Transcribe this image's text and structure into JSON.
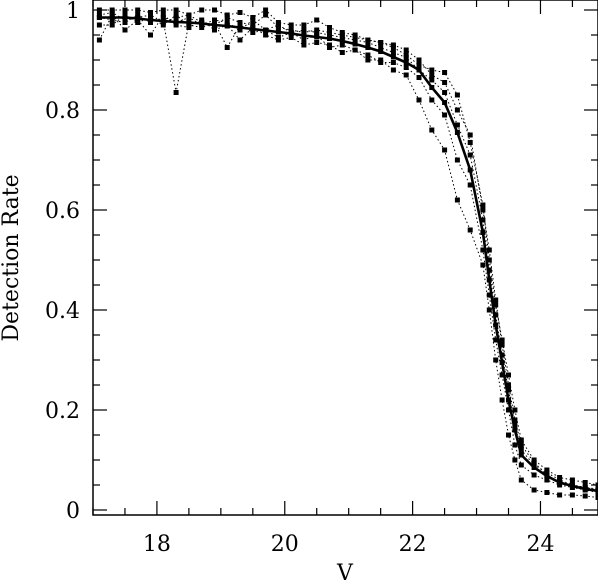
{
  "chart_data": {
    "type": "line",
    "title": "",
    "xlabel": "V",
    "ylabel": "Detection Rate",
    "xlim": [
      17.0,
      24.9
    ],
    "ylim": [
      0,
      1.0
    ],
    "xticks": [
      18,
      20,
      22,
      24
    ],
    "yticks": [
      0,
      0.2,
      0.4,
      0.6,
      0.8,
      1
    ],
    "grid": false,
    "legend": "none",
    "x": [
      17.1,
      17.3,
      17.5,
      17.7,
      17.9,
      18.1,
      18.3,
      18.5,
      18.7,
      18.9,
      19.1,
      19.3,
      19.5,
      19.7,
      19.9,
      20.1,
      20.3,
      20.5,
      20.7,
      20.9,
      21.1,
      21.3,
      21.5,
      21.7,
      21.9,
      22.1,
      22.3,
      22.5,
      22.7,
      22.9,
      23.1,
      23.2,
      23.3,
      23.4,
      23.5,
      23.6,
      23.7,
      23.9,
      24.1,
      24.3,
      24.5,
      24.7,
      24.9
    ],
    "series": [
      {
        "style": "solid-thick",
        "color": "#000000",
        "values": [
          0.985,
          0.985,
          0.985,
          0.983,
          0.98,
          0.978,
          0.976,
          0.975,
          0.973,
          0.97,
          0.968,
          0.965,
          0.962,
          0.959,
          0.956,
          0.953,
          0.949,
          0.946,
          0.943,
          0.938,
          0.932,
          0.925,
          0.917,
          0.906,
          0.895,
          0.88,
          0.845,
          0.815,
          0.755,
          0.68,
          0.555,
          0.46,
          0.37,
          0.295,
          0.22,
          0.16,
          0.11,
          0.085,
          0.068,
          0.055,
          0.048,
          0.042,
          0.038
        ]
      },
      {
        "style": "dotted",
        "color": "#000000",
        "values": [
          0.985,
          0.985,
          0.985,
          0.983,
          0.98,
          0.978,
          0.835,
          0.975,
          0.973,
          0.97,
          0.968,
          0.965,
          0.962,
          0.959,
          0.956,
          0.953,
          0.949,
          0.946,
          0.943,
          0.938,
          0.932,
          0.925,
          0.917,
          0.906,
          0.895,
          0.88,
          0.845,
          0.815,
          0.755,
          0.68,
          0.555,
          0.46,
          0.37,
          0.295,
          0.22,
          0.16,
          0.11,
          0.085,
          0.068,
          0.055,
          0.048,
          0.042,
          0.038
        ]
      },
      {
        "style": "dotted",
        "color": "#000000",
        "values": [
          1.0,
          1.0,
          1.0,
          1.0,
          0.995,
          1.0,
          1.0,
          0.99,
          1.0,
          1.0,
          0.99,
          0.995,
          0.985,
          1.0,
          0.975,
          0.97,
          0.97,
          0.98,
          0.965,
          0.955,
          0.95,
          0.94,
          0.935,
          0.925,
          0.91,
          0.89,
          0.88,
          0.875,
          0.83,
          0.735,
          0.61,
          0.5,
          0.41,
          0.34,
          0.27,
          0.2,
          0.14,
          0.1,
          0.08,
          0.065,
          0.06,
          0.055,
          0.05
        ]
      },
      {
        "style": "dotted",
        "color": "#000000",
        "values": [
          0.94,
          0.99,
          0.96,
          0.98,
          0.95,
          0.99,
          0.97,
          0.965,
          0.98,
          0.96,
          0.97,
          0.94,
          0.965,
          0.95,
          0.94,
          0.945,
          0.93,
          0.935,
          0.93,
          0.915,
          0.92,
          0.9,
          0.9,
          0.88,
          0.87,
          0.82,
          0.76,
          0.72,
          0.62,
          0.56,
          0.49,
          0.4,
          0.3,
          0.22,
          0.15,
          0.1,
          0.06,
          0.04,
          0.035,
          0.03,
          0.03,
          0.028,
          0.025
        ]
      },
      {
        "style": "dotted",
        "color": "#000000",
        "values": [
          0.97,
          0.97,
          0.99,
          0.975,
          0.985,
          0.97,
          0.99,
          0.97,
          0.965,
          0.975,
          0.925,
          0.97,
          0.955,
          0.96,
          0.945,
          0.955,
          0.94,
          0.95,
          0.925,
          0.93,
          0.92,
          0.91,
          0.895,
          0.895,
          0.885,
          0.865,
          0.82,
          0.79,
          0.7,
          0.65,
          0.52,
          0.43,
          0.34,
          0.27,
          0.2,
          0.13,
          0.09,
          0.07,
          0.06,
          0.05,
          0.045,
          0.04,
          0.035
        ]
      },
      {
        "style": "dotted",
        "color": "#000000",
        "values": [
          0.985,
          0.98,
          0.975,
          0.99,
          0.975,
          0.985,
          0.975,
          0.985,
          0.97,
          0.98,
          0.975,
          0.96,
          0.98,
          0.96,
          0.97,
          0.955,
          0.96,
          0.955,
          0.95,
          0.945,
          0.94,
          0.935,
          0.925,
          0.915,
          0.905,
          0.88,
          0.86,
          0.835,
          0.77,
          0.71,
          0.58,
          0.48,
          0.39,
          0.31,
          0.24,
          0.17,
          0.12,
          0.09,
          0.075,
          0.06,
          0.05,
          0.045,
          0.04
        ]
      },
      {
        "style": "dotted",
        "color": "#000000",
        "values": [
          0.99,
          0.995,
          0.98,
          0.985,
          0.99,
          0.975,
          0.985,
          0.99,
          0.975,
          0.97,
          0.985,
          0.975,
          0.97,
          0.99,
          0.965,
          0.96,
          0.955,
          0.96,
          0.955,
          0.95,
          0.945,
          0.94,
          0.935,
          0.93,
          0.92,
          0.9,
          0.87,
          0.855,
          0.8,
          0.75,
          0.6,
          0.52,
          0.42,
          0.33,
          0.25,
          0.18,
          0.13,
          0.095,
          0.07,
          0.055,
          0.05,
          0.045,
          0.042
        ]
      }
    ]
  }
}
